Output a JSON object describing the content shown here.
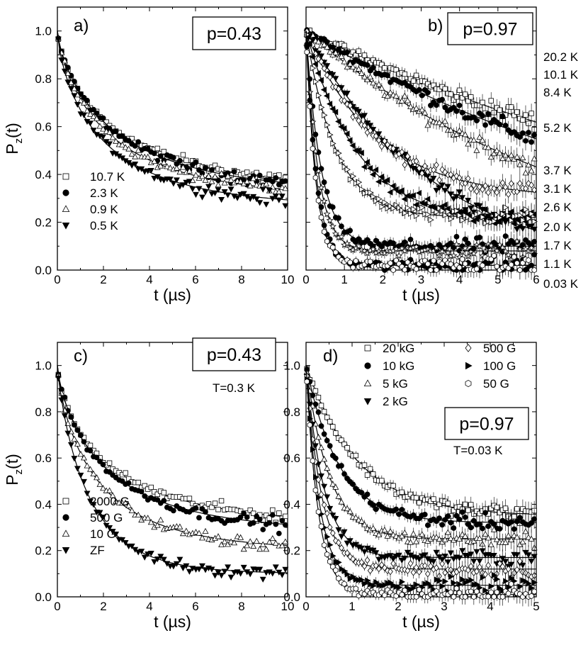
{
  "chart_data": [
    {
      "panel": "a)",
      "type": "scatter",
      "annotation": "p=0.43",
      "subannotation": "",
      "xlabel": "t (µs)",
      "ylabel": "P(t)",
      "ylabel_main": "P",
      "ylabel_sub": "z",
      "ylabel_tail": "(t)",
      "xlim": [
        0,
        10
      ],
      "ylim": [
        0,
        1.1
      ],
      "xticks": [
        "0",
        "2",
        "4",
        "6",
        "8",
        "10"
      ],
      "yticks": [
        "0.0",
        "0.2",
        "0.4",
        "0.6",
        "0.8",
        "1.0"
      ],
      "legend_position": "lower-left",
      "legend_rows": 4,
      "series": [
        {
          "name": "10.7 K",
          "marker": "square-open",
          "fit": {
            "lambda": 0.36,
            "beta": 0.7,
            "tail": 0.68,
            "floor": 0.0
          }
        },
        {
          "name": "2.3 K",
          "marker": "circle-filled",
          "fit": {
            "lambda": 0.38,
            "beta": 0.75,
            "tail": 0.68,
            "floor": 0.0
          }
        },
        {
          "name": "0.9 K",
          "marker": "triangle-up-open",
          "fit": {
            "lambda": 0.42,
            "beta": 0.75,
            "tail": 0.7,
            "floor": 0.0
          }
        },
        {
          "name": "0.5 K",
          "marker": "triangle-down-filled",
          "fit": {
            "lambda": 0.48,
            "beta": 0.72,
            "tail": 0.74,
            "floor": 0.0
          }
        }
      ]
    },
    {
      "panel": "b)",
      "type": "scatter",
      "annotation": "p=0.97",
      "subannotation": "",
      "xlabel": "t (µs)",
      "ylabel": "",
      "xlim": [
        0,
        6
      ],
      "ylim": [
        0,
        1.1
      ],
      "xticks": [
        "0",
        "1",
        "2",
        "3",
        "4",
        "5",
        "6"
      ],
      "yticks": [],
      "legend_position": "right-side-labels",
      "series": [
        {
          "name": "20.2 K",
          "marker": "square-open",
          "fit": {
            "lambda": 0.08,
            "beta": 1.0,
            "tail": 1.0,
            "floor": 0.0
          }
        },
        {
          "name": "10.1 K",
          "marker": "circle-filled",
          "fit": {
            "lambda": 0.1,
            "beta": 1.0,
            "tail": 1.0,
            "floor": 0.0
          }
        },
        {
          "name": "8.4 K",
          "marker": "triangle-up-open",
          "fit": {
            "lambda": 0.14,
            "beta": 1.0,
            "tail": 1.0,
            "floor": 0.0
          }
        },
        {
          "name": "5.2 K",
          "marker": "triangle-down-filled",
          "fit": {
            "lambda": 0.3,
            "beta": 1.0,
            "tail": 1.0,
            "floor": 0.0
          }
        },
        {
          "name": "3.7 K",
          "marker": "diamond-open",
          "fit": {
            "lambda": 0.55,
            "beta": 1.0,
            "tail": 0.65,
            "floor": 0.3
          }
        },
        {
          "name": "3.1 K",
          "marker": "triangle-left-filled",
          "fit": {
            "lambda": 0.75,
            "beta": 1.0,
            "tail": 0.75,
            "floor": 0.2
          }
        },
        {
          "name": "2.6 K",
          "marker": "triangle-right-open",
          "fit": {
            "lambda": 1.3,
            "beta": 1.0,
            "tail": 0.7,
            "floor": 0.22
          }
        },
        {
          "name": "2.0 K",
          "marker": "circle-filled",
          "fit": {
            "lambda": 2.6,
            "beta": 1.0,
            "tail": 0.83,
            "floor": 0.1
          }
        },
        {
          "name": "1.7 K",
          "marker": "star-open",
          "fit": {
            "lambda": 3.2,
            "beta": 1.0,
            "tail": 0.85,
            "floor": 0.08
          }
        },
        {
          "name": "1.1 K",
          "marker": "circle-filled",
          "fit": {
            "lambda": 3.6,
            "beta": 1.0,
            "tail": 0.9,
            "floor": 0.02
          }
        },
        {
          "name": "0.03 K",
          "marker": "hexagon-open",
          "fit": {
            "lambda": 4.0,
            "beta": 1.0,
            "tail": 0.9,
            "floor": 0.02
          }
        }
      ]
    },
    {
      "panel": "c)",
      "type": "scatter",
      "annotation": "p=0.43",
      "subannotation": "T=0.3 K",
      "xlabel": "t (µs)",
      "ylabel": "P(t)",
      "ylabel_main": "P",
      "ylabel_sub": "z",
      "ylabel_tail": "(t)",
      "xlim": [
        0,
        10
      ],
      "ylim": [
        0,
        1.1
      ],
      "xticks": [
        "0",
        "2",
        "4",
        "6",
        "8",
        "10"
      ],
      "yticks": [
        "0.0",
        "0.2",
        "0.4",
        "0.6",
        "0.8",
        "1.0"
      ],
      "legend_position": "lower-left",
      "legend_rows": 4,
      "series": [
        {
          "name": "2000 G",
          "marker": "square-open",
          "fit": {
            "lambda": 0.42,
            "beta": 0.7,
            "tail": 0.7,
            "floor": 0.0
          }
        },
        {
          "name": "500 G",
          "marker": "circle-filled",
          "fit": {
            "lambda": 0.45,
            "beta": 0.75,
            "tail": 0.72,
            "floor": 0.0
          }
        },
        {
          "name": "10 G",
          "marker": "triangle-up-open",
          "fit": {
            "lambda": 0.55,
            "beta": 0.75,
            "tail": 0.8,
            "floor": 0.0
          }
        },
        {
          "name": "ZF",
          "marker": "triangle-down-filled",
          "fit": {
            "lambda": 0.72,
            "beta": 0.85,
            "tail": 0.9,
            "floor": 0.0
          }
        }
      ]
    },
    {
      "panel": "d)",
      "type": "scatter",
      "annotation": "p=0.97",
      "subannotation": "T=0.03 K",
      "xlabel": "t (µs)",
      "ylabel": "",
      "xlim": [
        0,
        5
      ],
      "ylim": [
        0,
        1.1
      ],
      "xticks": [
        "0",
        "1",
        "2",
        "3",
        "4",
        "5"
      ],
      "yticks": [
        "0.0",
        "0.2",
        "0.4",
        "0.6",
        "0.8",
        "1.0"
      ],
      "legend_position": "top-two-columns",
      "series": [
        {
          "name": "20 kG",
          "marker": "square-open",
          "fit": {
            "lambda": 0.9,
            "beta": 1.0,
            "tail": 0.62,
            "floor": 0.35
          }
        },
        {
          "name": "10 kG",
          "marker": "circle-filled",
          "fit": {
            "lambda": 1.4,
            "beta": 1.0,
            "tail": 0.62,
            "floor": 0.32
          }
        },
        {
          "name": "5 kG",
          "marker": "triangle-up-open",
          "fit": {
            "lambda": 2.0,
            "beta": 1.0,
            "tail": 0.75,
            "floor": 0.25
          }
        },
        {
          "name": "2 kG",
          "marker": "triangle-down-filled",
          "fit": {
            "lambda": 2.6,
            "beta": 1.0,
            "tail": 0.82,
            "floor": 0.17
          }
        },
        {
          "name": "500 G",
          "marker": "diamond-open",
          "fit": {
            "lambda": 3.0,
            "beta": 1.0,
            "tail": 0.87,
            "floor": 0.12
          }
        },
        {
          "name": "100 G",
          "marker": "triangle-right-filled",
          "fit": {
            "lambda": 3.4,
            "beta": 1.0,
            "tail": 0.93,
            "floor": 0.05
          }
        },
        {
          "name": "50 G",
          "marker": "hexagon-open",
          "fit": {
            "lambda": 3.8,
            "beta": 1.0,
            "tail": 0.97,
            "floor": 0.01
          }
        }
      ]
    }
  ]
}
